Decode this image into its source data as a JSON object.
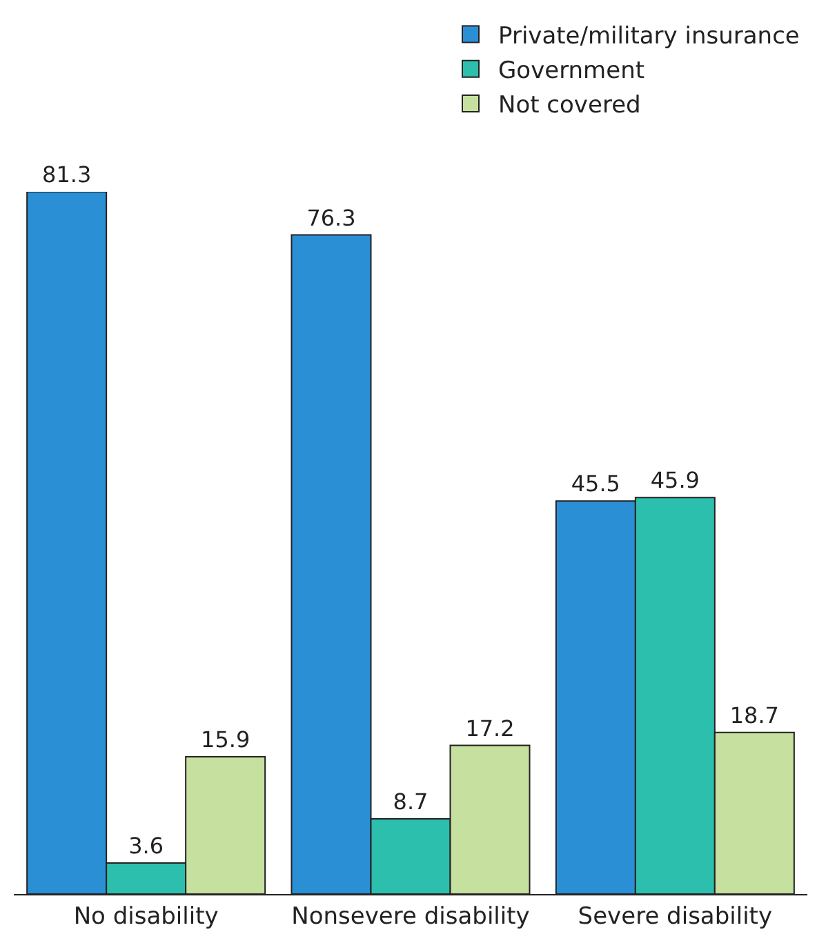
{
  "chart_data": {
    "type": "bar",
    "categories": [
      "No disability",
      "Nonsevere disability",
      "Severe disability"
    ],
    "series": [
      {
        "name": "Private/military insurance",
        "color": "#2b8fd6",
        "values": [
          81.3,
          76.3,
          45.5
        ]
      },
      {
        "name": "Government",
        "color": "#2dbfad",
        "values": [
          3.6,
          8.7,
          45.9
        ]
      },
      {
        "name": "Not covered",
        "color": "#c6e09f",
        "values": [
          15.9,
          17.2,
          18.7
        ]
      }
    ],
    "tick_labels": "x",
    "data_labels": true,
    "legend": "top right"
  }
}
